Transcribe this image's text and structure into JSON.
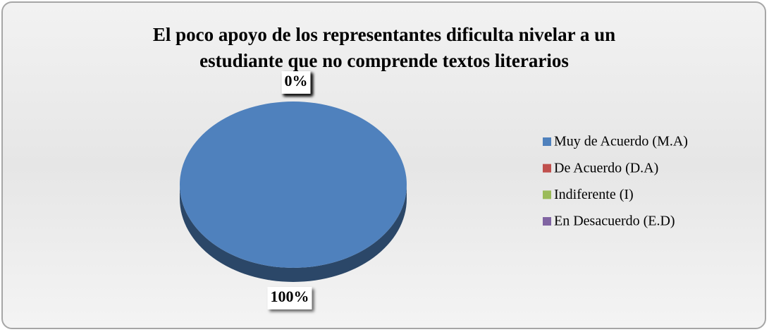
{
  "chart_data": {
    "type": "pie",
    "title": "El poco apoyo de los representantes dificulta nivelar a un estudiante que no comprende textos literarios",
    "title_lines": [
      "El poco apoyo de los representantes dificulta nivelar a un",
      "estudiante que no comprende textos literarios"
    ],
    "categories": [
      "Muy de Acuerdo (M.A)",
      "De Acuerdo (D.A)",
      "Indiferente (I)",
      "En Desacuerdo (E.D)"
    ],
    "values": [
      100,
      0,
      0,
      0
    ],
    "value_labels": [
      "100%",
      "0%",
      "0%",
      "0%"
    ],
    "colors": [
      "#4f81bd",
      "#c0504d",
      "#9bbb59",
      "#8064a2"
    ],
    "legend": "right"
  }
}
